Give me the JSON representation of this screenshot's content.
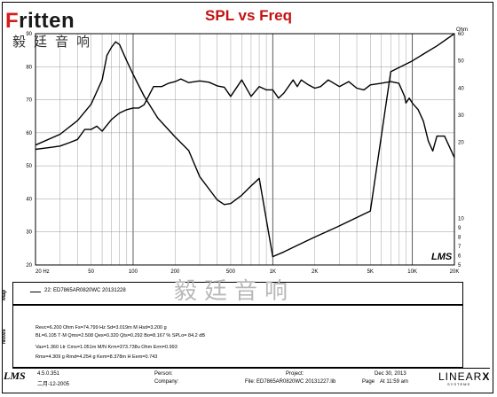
{
  "header": {
    "logo_brand": "Fritten",
    "logo_cn": "毅廷音响",
    "title": "SPL vs Freq"
  },
  "chart_data": {
    "type": "line",
    "title": "SPL vs Freq",
    "xscale": "log",
    "xlim": [
      20,
      20000
    ],
    "x_tick_labels": [
      "20 Hz",
      "50",
      "100",
      "200",
      "500",
      "1K",
      "2K",
      "5K",
      "10K",
      "20K"
    ],
    "x_tick_values": [
      20,
      50,
      100,
      200,
      500,
      1000,
      2000,
      5000,
      10000,
      20000
    ],
    "left_axis": {
      "unit": "dB",
      "lim": [
        20,
        90
      ],
      "tick_values": [
        20,
        30,
        40,
        50,
        60,
        70,
        80,
        90
      ]
    },
    "right_axis": {
      "unit": "Ohm",
      "upper_ticks": [
        60,
        50,
        40,
        30,
        20
      ],
      "upper_lim": [
        15,
        60
      ],
      "lower_ticks": [
        10,
        9,
        8,
        7,
        6,
        5
      ],
      "lower_lim": [
        5,
        11
      ]
    },
    "grid": true,
    "series": [
      {
        "name": "SPL",
        "axis": "left",
        "x": [
          20,
          25,
          30,
          35,
          40,
          45,
          50,
          55,
          60,
          70,
          80,
          90,
          100,
          110,
          120,
          140,
          160,
          180,
          200,
          220,
          250,
          300,
          350,
          400,
          450,
          500,
          600,
          700,
          800,
          900,
          1000,
          1100,
          1200,
          1400,
          1500,
          1600,
          1800,
          2000,
          2200,
          2500,
          3000,
          3500,
          4000,
          4500,
          5000,
          6000,
          7000,
          8000,
          8800,
          9000,
          9500,
          10000,
          11000,
          12000,
          13000,
          14000,
          15000,
          17000,
          20000
        ],
        "values": [
          55,
          55.5,
          56,
          57,
          58,
          61,
          61,
          62,
          60.5,
          64,
          66,
          67,
          67.5,
          67.5,
          68.5,
          74,
          74,
          75,
          75.5,
          76.3,
          75.2,
          75.7,
          75.3,
          74.2,
          73.8,
          71,
          76,
          71,
          74,
          73,
          73,
          70.5,
          72,
          76,
          74,
          76,
          74.5,
          73.5,
          74,
          76,
          74,
          75.5,
          73.5,
          73,
          74.5,
          75,
          75.5,
          75,
          71,
          69,
          70.5,
          69,
          67,
          63.5,
          57.5,
          54.5,
          59,
          59,
          52.5
        ]
      },
      {
        "name": "Impedance",
        "axis": "right",
        "x": [
          20,
          30,
          40,
          50,
          60,
          65,
          70,
          75,
          80,
          90,
          100,
          120,
          150,
          200,
          250,
          300,
          400,
          450,
          500,
          600,
          700,
          800,
          1000,
          1200,
          1500,
          2000,
          3000,
          5000,
          7000,
          10000,
          12000,
          15000,
          20000
        ],
        "values": [
          19,
          23,
          28,
          34,
          43,
          52,
          55,
          57,
          56,
          50,
          45,
          37,
          29,
          22,
          17,
          14.5,
          12,
          11.5,
          11.6,
          12.5,
          13.5,
          14.3,
          5.9,
          6.4,
          7.1,
          8.0,
          9.2,
          10.8,
          46,
          50,
          52.5,
          55.5,
          60
        ]
      }
    ]
  },
  "branding": {
    "chart_logo": "LMS"
  },
  "panels": {
    "map_label": "Map",
    "notes_label": "Notes",
    "legend": "22: ED7865AR0820WC 20131228",
    "watermark": "毅廷音响"
  },
  "notes": [
    "Revc=6.200 Ohm  Fs=74.799 Hz  Sd=3.019m M Hsd=3.200 g",
    "BL=6.105 T·M  Qms=2.508  Qes=0.320  Qts=0.292  Bo=8.167 %  SPLo= 84.2 dB",
    "Vas=1.360 Ltr  Cms=1.051m M/N  Krm=373.738u Ohm  Erm=0.993",
    "Rms=4.309 g  Rmd=4.254 g  Kem=8.378m H  Eem=0.743"
  ],
  "footer": {
    "version": "4.5.0.351",
    "version_date": "二月-12-2005",
    "person_label": "Person:",
    "company_label": "Company:",
    "project_label": "Project:",
    "file_label": "File: ED7865AR0820WC  20131227.lib",
    "date": "Dec 30, 2013",
    "page": "Page",
    "time": "At 11:59 am",
    "vendor": "LINEAR",
    "vendor_sub": "SYSTEMS"
  }
}
